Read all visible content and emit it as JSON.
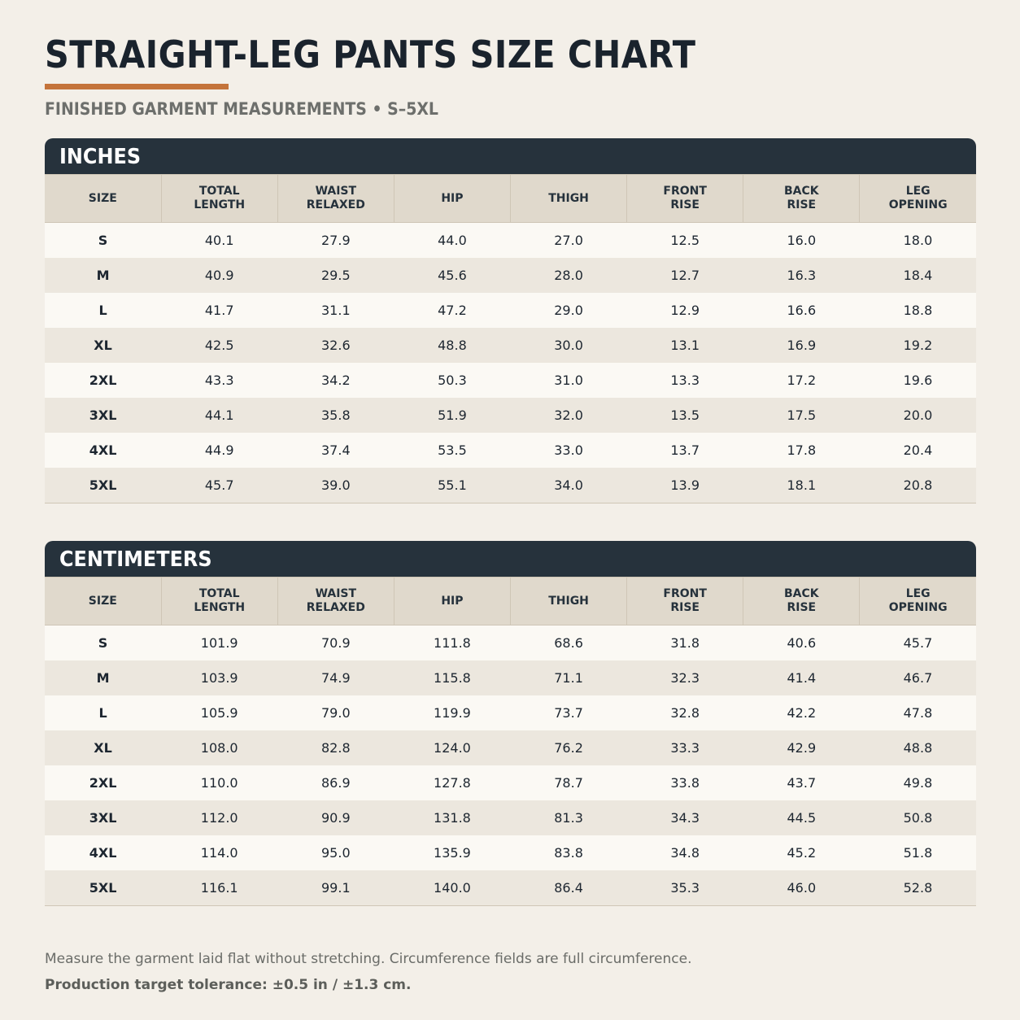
{
  "title": "STRAIGHT-LEG PANTS SIZE CHART",
  "subtitle": "FINISHED GARMENT MEASUREMENTS • S–5XL",
  "colors": {
    "background": "#f3efe8",
    "accent": "#c4733a",
    "section_header": "#26323c",
    "column_header": "#e0d9cc"
  },
  "columns": [
    [
      "SIZE"
    ],
    [
      "TOTAL",
      "LENGTH"
    ],
    [
      "WAIST",
      "RELAXED"
    ],
    [
      "HIP"
    ],
    [
      "THIGH"
    ],
    [
      "FRONT",
      "RISE"
    ],
    [
      "BACK",
      "RISE"
    ],
    [
      "LEG",
      "OPENING"
    ]
  ],
  "tables": [
    {
      "title": "INCHES",
      "rows": [
        [
          "S",
          "40.1",
          "27.9",
          "44.0",
          "27.0",
          "12.5",
          "16.0",
          "18.0"
        ],
        [
          "M",
          "40.9",
          "29.5",
          "45.6",
          "28.0",
          "12.7",
          "16.3",
          "18.4"
        ],
        [
          "L",
          "41.7",
          "31.1",
          "47.2",
          "29.0",
          "12.9",
          "16.6",
          "18.8"
        ],
        [
          "XL",
          "42.5",
          "32.6",
          "48.8",
          "30.0",
          "13.1",
          "16.9",
          "19.2"
        ],
        [
          "2XL",
          "43.3",
          "34.2",
          "50.3",
          "31.0",
          "13.3",
          "17.2",
          "19.6"
        ],
        [
          "3XL",
          "44.1",
          "35.8",
          "51.9",
          "32.0",
          "13.5",
          "17.5",
          "20.0"
        ],
        [
          "4XL",
          "44.9",
          "37.4",
          "53.5",
          "33.0",
          "13.7",
          "17.8",
          "20.4"
        ],
        [
          "5XL",
          "45.7",
          "39.0",
          "55.1",
          "34.0",
          "13.9",
          "18.1",
          "20.8"
        ]
      ]
    },
    {
      "title": "CENTIMETERS",
      "rows": [
        [
          "S",
          "101.9",
          "70.9",
          "111.8",
          "68.6",
          "31.8",
          "40.6",
          "45.7"
        ],
        [
          "M",
          "103.9",
          "74.9",
          "115.8",
          "71.1",
          "32.3",
          "41.4",
          "46.7"
        ],
        [
          "L",
          "105.9",
          "79.0",
          "119.9",
          "73.7",
          "32.8",
          "42.2",
          "47.8"
        ],
        [
          "XL",
          "108.0",
          "82.8",
          "124.0",
          "76.2",
          "33.3",
          "42.9",
          "48.8"
        ],
        [
          "2XL",
          "110.0",
          "86.9",
          "127.8",
          "78.7",
          "33.8",
          "43.7",
          "49.8"
        ],
        [
          "3XL",
          "112.0",
          "90.9",
          "131.8",
          "81.3",
          "34.3",
          "44.5",
          "50.8"
        ],
        [
          "4XL",
          "114.0",
          "95.0",
          "135.9",
          "83.8",
          "34.8",
          "45.2",
          "51.8"
        ],
        [
          "5XL",
          "116.1",
          "99.1",
          "140.0",
          "86.4",
          "35.3",
          "46.0",
          "52.8"
        ]
      ]
    }
  ],
  "notes": {
    "measure": "Measure the garment laid flat without stretching. Circumference fields are full circumference.",
    "tolerance": "Production target tolerance: ±0.5 in / ±1.3 cm."
  }
}
